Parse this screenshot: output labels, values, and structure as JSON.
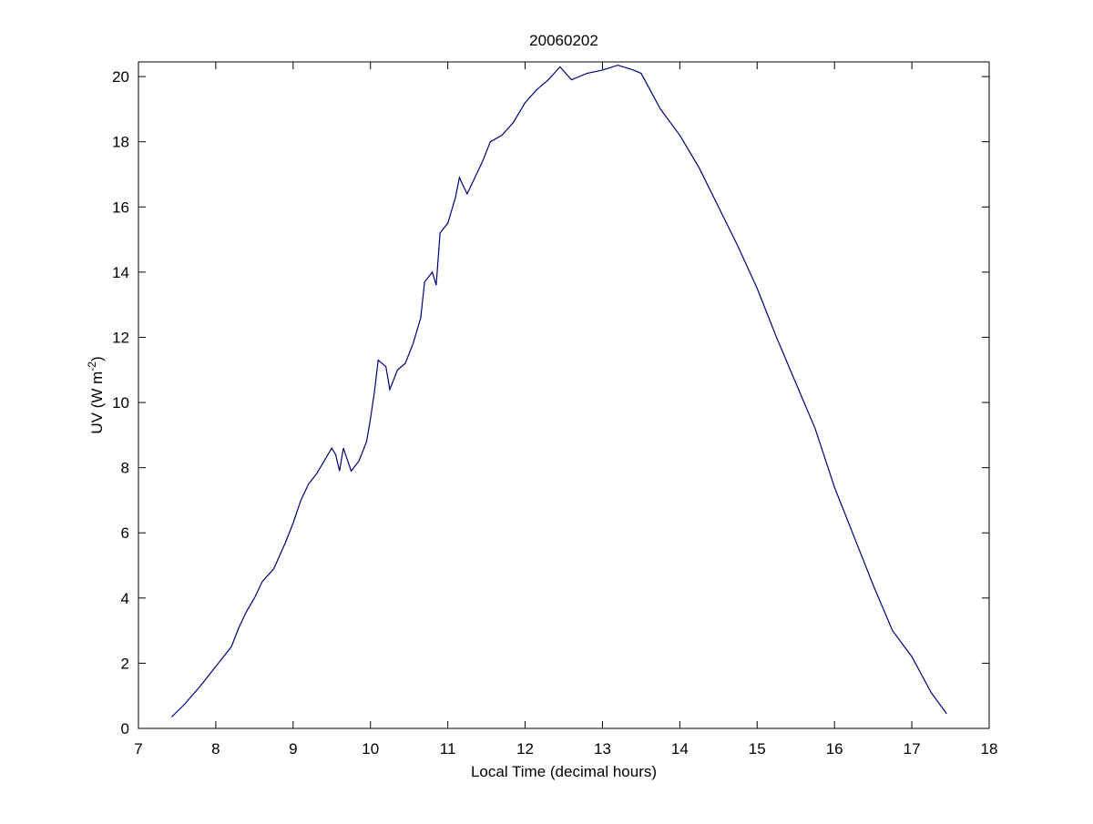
{
  "chart_data": {
    "type": "line",
    "title": "20060202",
    "x_label": "Local Time (decimal hours)",
    "y_label": {
      "base": "UV (W m",
      "superscript": "-2",
      "end": ")"
    },
    "x": [
      7.43,
      7.6,
      7.8,
      8.0,
      8.2,
      8.3,
      8.4,
      8.5,
      8.6,
      8.75,
      8.9,
      9.0,
      9.1,
      9.2,
      9.3,
      9.4,
      9.5,
      9.55,
      9.6,
      9.65,
      9.75,
      9.85,
      9.95,
      10.0,
      10.05,
      10.1,
      10.2,
      10.25,
      10.35,
      10.45,
      10.55,
      10.65,
      10.7,
      10.8,
      10.85,
      10.9,
      11.0,
      11.1,
      11.15,
      11.25,
      11.35,
      11.45,
      11.55,
      11.7,
      11.85,
      12.0,
      12.15,
      12.3,
      12.45,
      12.6,
      12.8,
      13.0,
      13.2,
      13.4,
      13.5,
      13.75,
      14.0,
      14.25,
      14.5,
      14.75,
      15.0,
      15.25,
      15.5,
      15.75,
      16.0,
      16.25,
      16.5,
      16.75,
      17.0,
      17.25,
      17.45
    ],
    "series": [
      {
        "name": "UV",
        "color": "#000080",
        "values": [
          0.35,
          0.75,
          1.3,
          1.9,
          2.5,
          3.1,
          3.6,
          4.0,
          4.5,
          4.9,
          5.7,
          6.3,
          7.0,
          7.5,
          7.8,
          8.2,
          8.6,
          8.4,
          7.9,
          8.6,
          7.9,
          8.2,
          8.8,
          9.5,
          10.3,
          11.3,
          11.1,
          10.4,
          11.0,
          11.2,
          11.8,
          12.6,
          13.7,
          14.0,
          13.6,
          15.2,
          15.5,
          16.3,
          16.9,
          16.4,
          16.9,
          17.4,
          18.0,
          18.2,
          18.6,
          19.2,
          19.6,
          19.9,
          20.3,
          19.9,
          20.1,
          20.2,
          20.35,
          20.2,
          20.1,
          19.0,
          18.2,
          17.2,
          16.0,
          14.8,
          13.5,
          12.0,
          10.6,
          9.2,
          7.4,
          5.9,
          4.4,
          3.0,
          2.2,
          1.1,
          0.45
        ]
      }
    ],
    "xlim": [
      7,
      18
    ],
    "ylim": [
      0,
      20.45
    ],
    "xticks": [
      7,
      8,
      9,
      10,
      11,
      12,
      13,
      14,
      15,
      16,
      17,
      18
    ],
    "yticks": [
      0,
      2,
      4,
      6,
      8,
      10,
      12,
      14,
      16,
      18,
      20
    ],
    "grid": false
  }
}
